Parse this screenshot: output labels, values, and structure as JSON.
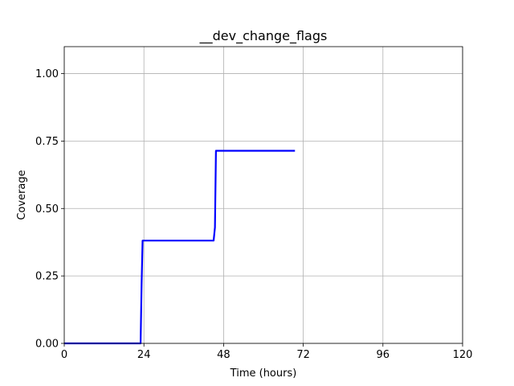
{
  "chart_data": {
    "type": "line",
    "title": "__dev_change_flags",
    "xlabel": "Time (hours)",
    "ylabel": "Coverage",
    "xlim": [
      0,
      120
    ],
    "ylim": [
      0,
      1.1
    ],
    "xticks": [
      0,
      24,
      48,
      72,
      96,
      120
    ],
    "yticks": [
      0.0,
      0.25,
      0.5,
      0.75,
      1.0
    ],
    "xtick_labels": [
      "0",
      "24",
      "48",
      "72",
      "96",
      "120"
    ],
    "ytick_labels": [
      "0.00",
      "0.25",
      "0.50",
      "0.75",
      "1.00"
    ],
    "grid": true,
    "series": [
      {
        "color": "#0000ff",
        "x": [
          0,
          23.0,
          23.3,
          23.6,
          45.0,
          45.4,
          45.7,
          69.5
        ],
        "y": [
          0.0,
          0.0,
          0.22,
          0.381,
          0.381,
          0.43,
          0.714,
          0.714
        ]
      }
    ]
  }
}
